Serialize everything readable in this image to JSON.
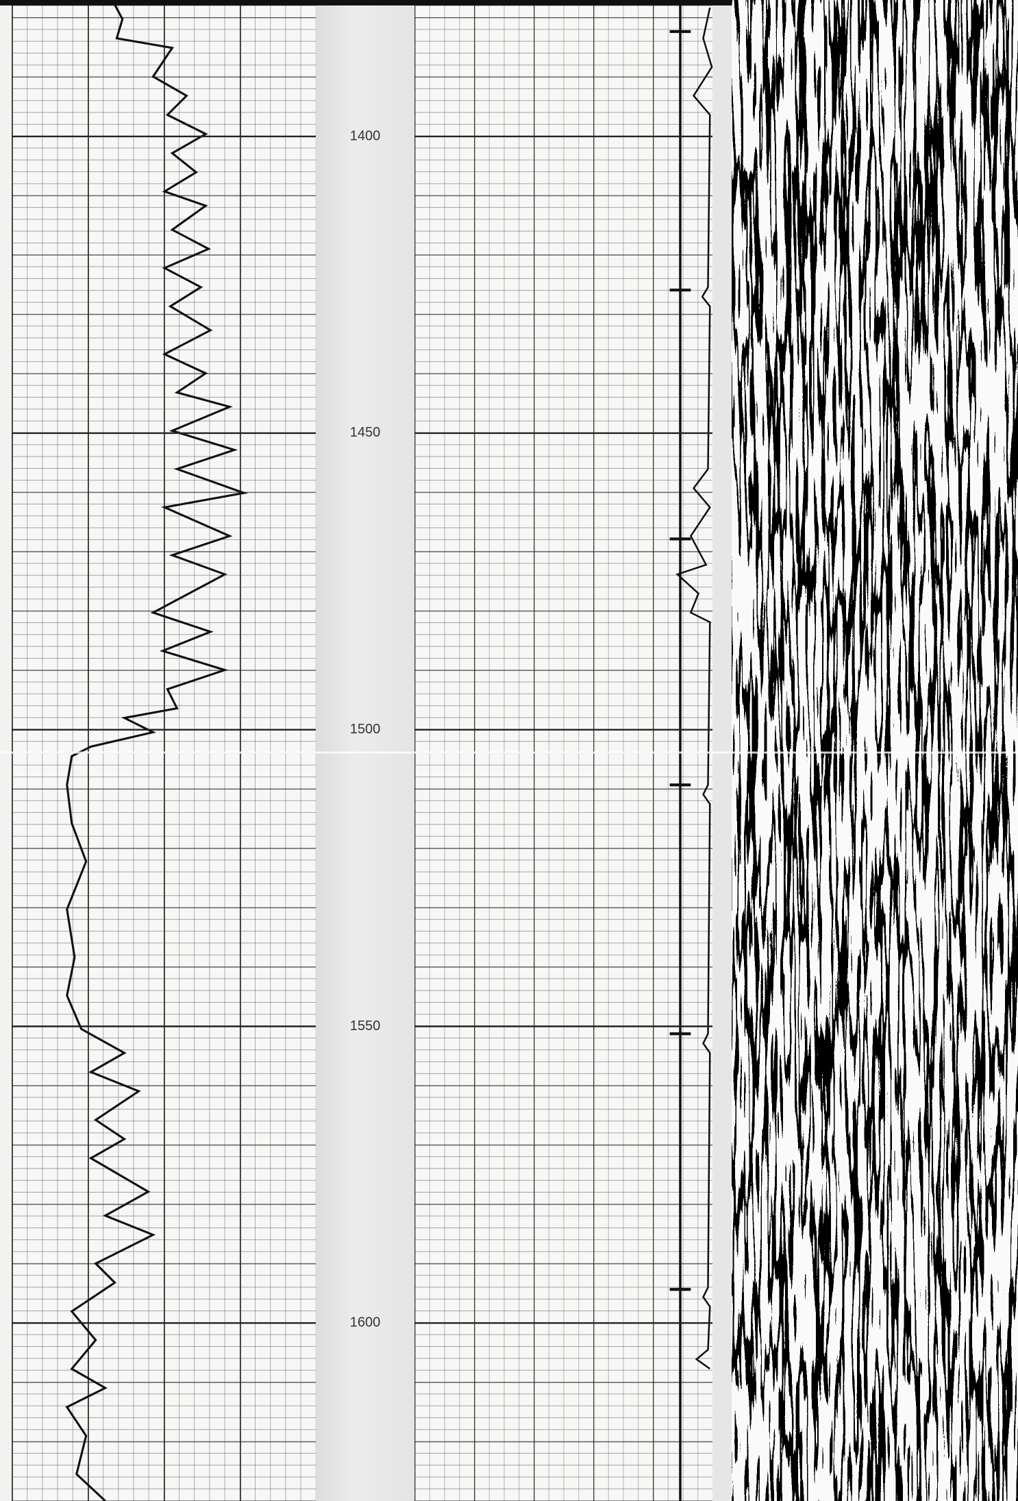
{
  "chart_data": {
    "type": "well-log",
    "ylim": [
      1377,
      1630
    ],
    "yticks": [
      1400,
      1450,
      1500,
      1550,
      1600
    ]
  }
}
